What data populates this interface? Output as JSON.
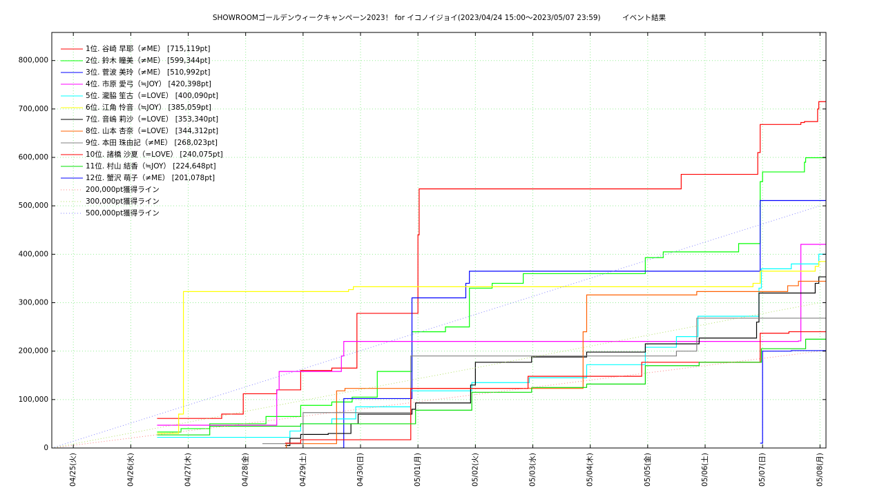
{
  "chart_data": {
    "type": "line",
    "step": "post",
    "title": "SHOWROOMゴールデンウィークキャンペーン2023！ for イコノイジョイ(2023/04/24 15:00～2023/05/07 23:59)　　　イベント結果",
    "xlim": [
      "04/24 15:00",
      "05/08 02:30"
    ],
    "xticks": [
      {
        "value": "04/25 00:00",
        "label": "04/25(火)"
      },
      {
        "value": "04/26 00:00",
        "label": "04/26(水)"
      },
      {
        "value": "04/27 00:00",
        "label": "04/27(木)"
      },
      {
        "value": "04/28 00:00",
        "label": "04/28(金)"
      },
      {
        "value": "04/29 00:00",
        "label": "04/29(土)"
      },
      {
        "value": "04/30 00:00",
        "label": "04/30(日)"
      },
      {
        "value": "05/01 00:00",
        "label": "05/01(月)"
      },
      {
        "value": "05/02 00:00",
        "label": "05/02(火)"
      },
      {
        "value": "05/03 00:00",
        "label": "05/03(水)"
      },
      {
        "value": "05/04 00:00",
        "label": "05/04(木)"
      },
      {
        "value": "05/05 00:00",
        "label": "05/05(金)"
      },
      {
        "value": "05/06 00:00",
        "label": "05/06(土)"
      },
      {
        "value": "05/07 00:00",
        "label": "05/07(日)"
      },
      {
        "value": "05/08 00:00",
        "label": "05/08(月)"
      }
    ],
    "ylim": [
      0,
      858000
    ],
    "yticks": [
      0,
      {
        "value": 100000,
        "label": "100,000"
      },
      {
        "value": 200000,
        "label": "200,000"
      },
      {
        "value": 300000,
        "label": "300,000"
      },
      {
        "value": 400000,
        "label": "400,000"
      },
      {
        "value": 500000,
        "label": "500,000"
      },
      {
        "value": 600000,
        "label": "600,000"
      },
      {
        "value": 700000,
        "label": "700,000"
      },
      {
        "value": 800000,
        "label": "800,000"
      }
    ],
    "grid": true,
    "legend": "upper left",
    "series": [
      {
        "name": "1位. 谷崎 早耶（≠ME） [715,119pt]",
        "color": "#ff0000",
        "x": [
          "04/26 11:00",
          "04/27 14:00",
          "04/27 23:00",
          "04/28 13:00",
          "04/28 23:00",
          "04/29 12:00",
          "04/29 22:30",
          "05/01 00:00",
          "05/01 00:30",
          "05/05 14:00",
          "05/06 22:00",
          "05/06 23:00",
          "05/07 16:00",
          "05/07 17:30",
          "05/07 23:00",
          "05/07 23:30"
        ],
        "values": [
          61000,
          70000,
          112000,
          120000,
          160000,
          165000,
          278000,
          440000,
          535000,
          565000,
          610000,
          668000,
          672000,
          674000,
          700000,
          715119
        ]
      },
      {
        "name": "2位. 鈴木 瞳美（≠ME） [599,344pt]",
        "color": "#00ff00",
        "x": [
          "04/26 11:00",
          "04/26 21:00",
          "04/27 09:00",
          "04/28 08:30",
          "04/28 23:00",
          "04/29 12:00",
          "04/29 20:30",
          "04/30 07:00",
          "04/30 21:30",
          "05/01 11:30",
          "05/01 21:30",
          "05/02 07:00",
          "05/02 20:00",
          "05/04 23:00",
          "05/05 06:30",
          "05/06 14:00",
          "05/06 23:00",
          "05/07 00:00",
          "05/07 17:30",
          "05/07 18:00"
        ],
        "values": [
          33000,
          40000,
          50000,
          65000,
          88000,
          95000,
          105000,
          158000,
          240000,
          250000,
          330000,
          340000,
          360000,
          393000,
          405000,
          422000,
          550000,
          570000,
          590000,
          599344
        ]
      },
      {
        "name": "3位. 菅波 美玲（≠ME） [510,992pt]",
        "color": "#0000ff",
        "x": [
          "04/29 15:30",
          "04/29 17:00",
          "04/30 21:30",
          "05/01 20:00",
          "05/01 21:30",
          "05/06 23:00"
        ],
        "values": [
          0,
          102000,
          310000,
          340000,
          365000,
          510992
        ]
      },
      {
        "name": "4位. 市原 愛弓（≒JOY） [420,398pt]",
        "color": "#ff00ff",
        "x": [
          "04/26 11:00",
          "04/28 13:00",
          "04/28 14:00",
          "04/29 16:00",
          "04/29 17:00",
          "05/07 15:00",
          "05/07 16:00"
        ],
        "values": [
          47000,
          120000,
          158000,
          190000,
          220000,
          221000,
          420398
        ]
      },
      {
        "name": "5位. 瀧脇 笙古（=LOVE） [400,090pt]",
        "color": "#00ffff",
        "x": [
          "04/26 11:00",
          "04/28 18:30",
          "04/28 23:00",
          "04/29 12:00",
          "04/29 22:00",
          "04/30 21:00",
          "05/01 22:30",
          "05/02 22:30",
          "05/03 22:30",
          "05/04 23:00",
          "05/05 12:00",
          "05/05 21:00",
          "05/06 22:30",
          "05/06 23:30",
          "05/07 12:00",
          "05/07 23:30"
        ],
        "values": [
          22000,
          35000,
          50000,
          60000,
          85000,
          118000,
          135000,
          145000,
          172000,
          208000,
          230000,
          272000,
          330000,
          370000,
          380000,
          400090
        ]
      },
      {
        "name": "6位. 江角 怜音（≒JOY） [385,059pt]",
        "color": "#ffff00",
        "x": [
          "04/26 11:00",
          "04/26 20:00",
          "04/26 22:00",
          "04/29 19:00",
          "04/29 21:00",
          "05/06 20:00",
          "05/06 23:00",
          "05/07 22:00",
          "05/07 23:30"
        ],
        "values": [
          30000,
          70000,
          323000,
          327000,
          333000,
          340000,
          365000,
          375000,
          385059
        ]
      },
      {
        "name": "7位. 音嶋 莉沙（=LOVE） [353,340pt]",
        "color": "#000000",
        "x": [
          "04/28 16:30",
          "04/28 18:30",
          "04/28 23:00",
          "04/29 10:30",
          "04/29 20:00",
          "04/29 23:00",
          "04/30 21:30",
          "04/30 23:00",
          "05/01 22:00",
          "05/02 00:00",
          "05/02 23:30",
          "05/03 22:30",
          "05/04 23:00",
          "05/05 21:30",
          "05/06 21:30",
          "05/06 22:30",
          "05/07 22:00",
          "05/07 23:30"
        ],
        "values": [
          5000,
          20000,
          28000,
          30000,
          50000,
          70000,
          80000,
          93000,
          130000,
          177000,
          188000,
          198000,
          215000,
          227000,
          260000,
          320000,
          340000,
          353340
        ]
      },
      {
        "name": "8位. 山本 杏奈（=LOVE） [344,312pt]",
        "color": "#ff6000",
        "x": [
          "04/28 16:30",
          "04/28 17:00",
          "04/29 14:00",
          "04/29 17:30",
          "05/03 21:00",
          "05/03 22:30",
          "05/05 20:30",
          "05/07 10:30",
          "05/07 15:00"
        ],
        "values": [
          0,
          9000,
          118000,
          123000,
          240000,
          316000,
          323000,
          335000,
          344312
        ]
      },
      {
        "name": "9位. 本田 珠由記（≠ME） [268,023pt]",
        "color": "#808080",
        "x": [
          "04/28 07:00",
          "04/29 00:00",
          "04/30 21:00",
          "05/05 12:00",
          "05/05 20:30"
        ],
        "values": [
          9000,
          73000,
          190000,
          200000,
          268023
        ]
      },
      {
        "name": "10位. 諸橋 沙夏（=LOVE） [240,075pt]",
        "color": "#ff0000",
        "x": [
          "04/28 16:30",
          "04/28 23:00",
          "04/30 21:00",
          "05/02 22:00",
          "05/04 21:30",
          "05/06 23:00",
          "05/07 11:00"
        ],
        "values": [
          10000,
          17000,
          123000,
          148000,
          177000,
          237000,
          240075
        ]
      },
      {
        "name": "11位. 村山 結香（≒JOY） [224,648pt]",
        "color": "#00e000",
        "x": [
          "04/26 11:00",
          "04/27 09:00",
          "04/28 23:00",
          "04/30 23:00",
          "05/01 22:30",
          "05/02 23:30",
          "05/03 22:30",
          "05/04 23:00",
          "05/05 21:30",
          "05/06 23:30",
          "05/07 18:00"
        ],
        "values": [
          27000,
          45000,
          50000,
          78000,
          115000,
          125000,
          132000,
          170000,
          177000,
          205000,
          224648
        ]
      },
      {
        "name": "12位. 蟹沢 萌子（≠ME） [201,078pt]",
        "color": "#0000ff",
        "x": [
          "05/06 23:00",
          "05/07 00:00",
          "05/07 12:00"
        ],
        "values": [
          10000,
          200000,
          201078
        ]
      },
      {
        "name": "200,000pt獲得ライン",
        "color": "#ff8080",
        "dash": true,
        "x": [
          "04/24 15:00",
          "05/07 23:59"
        ],
        "values": [
          0,
          200000
        ]
      },
      {
        "name": "300,000pt獲得ライン",
        "color": "#b0e060",
        "dash": true,
        "x": [
          "04/24 15:00",
          "05/07 23:59"
        ],
        "values": [
          0,
          300000
        ]
      },
      {
        "name": "500,000pt獲得ライン",
        "color": "#8080ff",
        "dash": true,
        "x": [
          "04/24 15:00",
          "05/07 23:59"
        ],
        "values": [
          0,
          500000
        ]
      }
    ]
  }
}
